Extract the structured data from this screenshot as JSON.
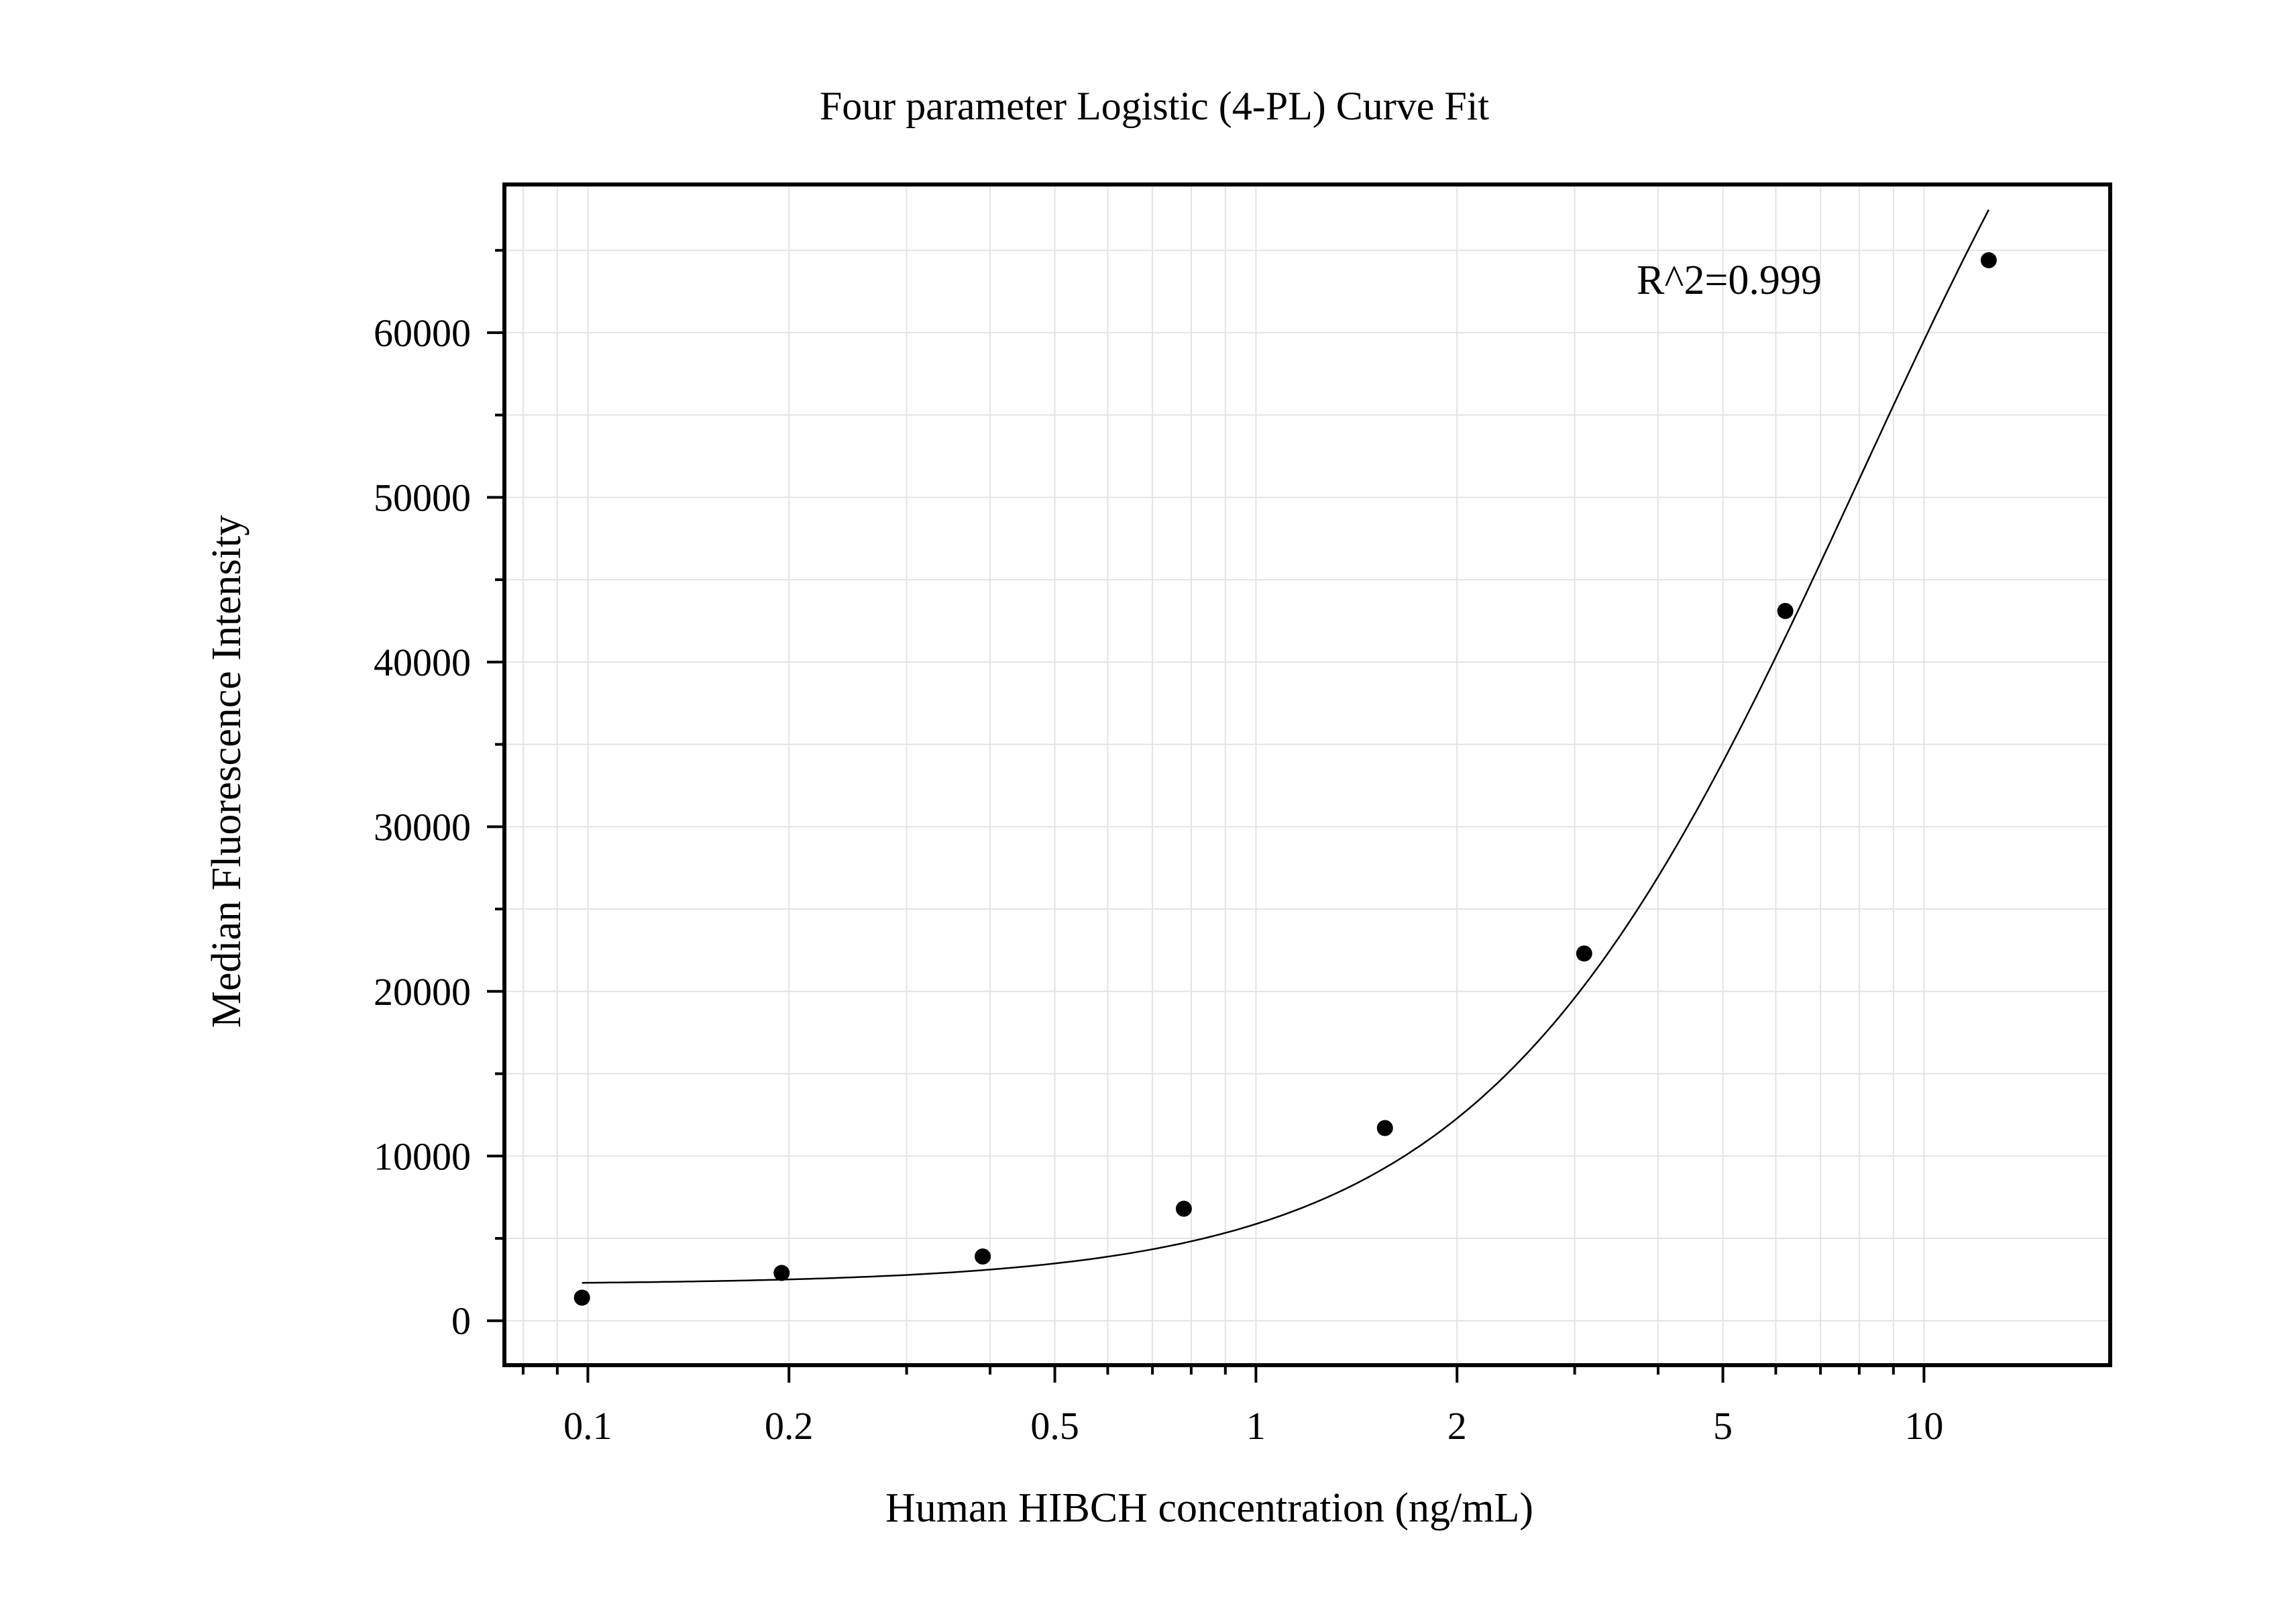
{
  "chart_data": {
    "type": "scatter",
    "title": "Four parameter Logistic (4-PL) Curve Fit",
    "xlabel": "Human HIBCH concentration (ng/mL)",
    "ylabel": "Median Fluorescence Intensity",
    "x_scale": "log",
    "xlim": [
      0.075,
      19
    ],
    "ylim": [
      -2700,
      69000
    ],
    "x_ticks": [
      0.1,
      0.2,
      0.5,
      1,
      2,
      5,
      10
    ],
    "x_tick_labels": [
      "0.1",
      "0.2",
      "0.5",
      "1",
      "2",
      "5",
      "10"
    ],
    "y_ticks": [
      0,
      10000,
      20000,
      30000,
      40000,
      50000,
      60000
    ],
    "y_tick_labels": [
      "0",
      "10000",
      "20000",
      "30000",
      "40000",
      "50000",
      "60000"
    ],
    "grid": true,
    "annotation": "R^2=0.999",
    "points": [
      {
        "x": 0.098,
        "y": 1400
      },
      {
        "x": 0.195,
        "y": 2900
      },
      {
        "x": 0.39,
        "y": 3900
      },
      {
        "x": 0.78,
        "y": 6800
      },
      {
        "x": 1.56,
        "y": 11700
      },
      {
        "x": 3.1,
        "y": 22300
      },
      {
        "x": 6.2,
        "y": 43100
      },
      {
        "x": 12.5,
        "y": 64400
      }
    ],
    "fit": {
      "model": "4PL",
      "A": 2200,
      "B": 1.56,
      "C": 8.0,
      "D": 100000,
      "x_range": [
        0.098,
        12.5
      ]
    },
    "colors": {
      "points": "#000000",
      "curve": "#000000",
      "grid": "#e3e3e3"
    }
  }
}
